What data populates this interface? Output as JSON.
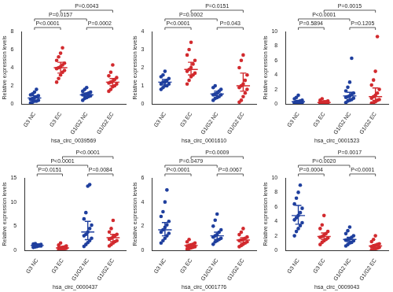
{
  "chart_data": [
    {
      "type": "scatter",
      "x_label": "hsa_circ_0039569",
      "y_label": "Relative expression levels",
      "categories": [
        "G3 NC",
        "G3 EC",
        "G1/G2 NC",
        "G1/G2 EC"
      ],
      "colors": [
        "#1f3f9e",
        "#d22a2e",
        "#1f3f9e",
        "#d22a2e"
      ],
      "ylim": [
        0,
        8
      ],
      "yticks": [
        0,
        2,
        4,
        6,
        8
      ],
      "grid": false,
      "groups": [
        {
          "values": [
            0.1,
            0.2,
            0.3,
            0.3,
            0.4,
            0.5,
            0.6,
            0.7,
            0.8,
            0.9,
            1.0,
            1.1,
            1.3,
            1.6
          ],
          "mean": 0.65,
          "error": [
            0.4,
            0.9
          ]
        },
        {
          "values": [
            2.4,
            2.8,
            3.2,
            3.5,
            3.7,
            3.9,
            4.0,
            4.1,
            4.3,
            4.5,
            4.8,
            5.2,
            5.6,
            6.2
          ],
          "mean": 4.0,
          "error": [
            3.4,
            4.6
          ]
        },
        {
          "values": [
            0.4,
            0.6,
            0.7,
            0.8,
            0.9,
            1.0,
            1.0,
            1.1,
            1.2,
            1.3,
            1.4,
            1.6,
            1.8
          ],
          "mean": 1.0,
          "error": [
            0.8,
            1.2
          ]
        },
        {
          "values": [
            1.4,
            1.6,
            1.9,
            2.0,
            2.2,
            2.3,
            2.4,
            2.5,
            2.7,
            2.9,
            3.1,
            3.5,
            4.3
          ],
          "mean": 2.4,
          "error": [
            2.0,
            2.8
          ]
        }
      ],
      "brackets": [
        {
          "from": "G3 NC",
          "to": "G3 EC",
          "label": "P<0.0001"
        },
        {
          "from": "G1/G2 NC",
          "to": "G1/G2 EC",
          "label": "P=0.0002"
        },
        {
          "from": "G3 NC",
          "to": "G1/G2 NC",
          "label": "P=0.0157"
        },
        {
          "from": "G3 EC",
          "to": "G1/G2 EC",
          "label": "P=0.0043"
        }
      ]
    },
    {
      "type": "scatter",
      "x_label": "hsa_circ_0001610",
      "y_label": "Relative expression levels",
      "categories": [
        "G3 NC",
        "G3 EC",
        "G1/G2 NC",
        "G1/G2 EC"
      ],
      "colors": [
        "#1f3f9e",
        "#d22a2e",
        "#1f3f9e",
        "#d22a2e"
      ],
      "ylim": [
        0,
        4
      ],
      "yticks": [
        0,
        1,
        2,
        3,
        4
      ],
      "grid": false,
      "groups": [
        {
          "values": [
            0.8,
            0.9,
            1.0,
            1.0,
            1.1,
            1.1,
            1.2,
            1.2,
            1.3,
            1.4,
            1.5,
            1.6,
            1.8
          ],
          "mean": 1.2,
          "error": [
            1.05,
            1.35
          ]
        },
        {
          "values": [
            1.1,
            1.3,
            1.5,
            1.6,
            1.7,
            1.8,
            1.9,
            2.0,
            2.2,
            2.4,
            2.7,
            3.0,
            3.4
          ],
          "mean": 1.9,
          "error": [
            1.6,
            2.3
          ]
        },
        {
          "values": [
            0.2,
            0.3,
            0.35,
            0.4,
            0.5,
            0.5,
            0.55,
            0.6,
            0.7,
            0.8,
            0.9,
            1.0
          ],
          "mean": 0.55,
          "error": [
            0.45,
            0.7
          ]
        },
        {
          "values": [
            0.1,
            0.2,
            0.4,
            0.6,
            0.8,
            0.9,
            1.0,
            1.1,
            1.3,
            1.6,
            2.0,
            2.4,
            2.7
          ],
          "mean": 1.0,
          "error": [
            0.7,
            1.7
          ]
        }
      ],
      "brackets": [
        {
          "from": "G3 NC",
          "to": "G3 EC",
          "label": "P<0.0001"
        },
        {
          "from": "G1/G2 NC",
          "to": "G1/G2 EC",
          "label": "P=0.043"
        },
        {
          "from": "G3 NC",
          "to": "G1/G2 NC",
          "label": "P=0.0002"
        },
        {
          "from": "G3 EC",
          "to": "G1/G2 EC",
          "label": "P=0.0151"
        }
      ]
    },
    {
      "type": "scatter",
      "x_label": "hsa_circ_0001523",
      "y_label": "Relative expression levels",
      "categories": [
        "G3 NC",
        "G3 EC",
        "G1/G2 NC",
        "G1/G2 EC"
      ],
      "colors": [
        "#1f3f9e",
        "#d22a2e",
        "#1f3f9e",
        "#d22a2e"
      ],
      "ylim": [
        0,
        10
      ],
      "yticks": [
        0,
        2,
        4,
        6,
        8,
        10
      ],
      "grid": false,
      "groups": [
        {
          "values": [
            0.0,
            0.05,
            0.1,
            0.1,
            0.2,
            0.2,
            0.3,
            0.3,
            0.4,
            0.5,
            0.7,
            0.9,
            1.2
          ],
          "mean": 0.3,
          "error": [
            0.1,
            0.5
          ]
        },
        {
          "values": [
            0.0,
            0.05,
            0.1,
            0.1,
            0.15,
            0.2,
            0.2,
            0.3,
            0.3,
            0.4,
            0.5,
            0.7
          ],
          "mean": 0.2,
          "error": [
            0.1,
            0.3
          ]
        },
        {
          "values": [
            0.2,
            0.4,
            0.5,
            0.6,
            0.8,
            0.9,
            1.0,
            1.1,
            1.3,
            1.5,
            1.8,
            2.3,
            3.0,
            6.3
          ],
          "mean": 1.1,
          "error": [
            0.6,
            1.6
          ]
        },
        {
          "values": [
            0.1,
            0.2,
            0.3,
            0.5,
            0.6,
            0.8,
            1.0,
            1.2,
            1.5,
            2.0,
            2.6,
            3.3,
            4.5,
            9.3
          ],
          "mean": 1.0,
          "error": [
            0.5,
            2.2
          ]
        }
      ],
      "brackets": [
        {
          "from": "G3 NC",
          "to": "G3 EC",
          "label": "P=0.5894"
        },
        {
          "from": "G1/G2 NC",
          "to": "G1/G2 EC",
          "label": "P=0.1205"
        },
        {
          "from": "G3 NC",
          "to": "G1/G2 NC",
          "label": "P<0.0001"
        },
        {
          "from": "G3 EC",
          "to": "G1/G2 EC",
          "label": "P=0.0015"
        }
      ]
    },
    {
      "type": "scatter",
      "x_label": "hsa_circ_0000437",
      "y_label": "Relative expression levels",
      "categories": [
        "G3 NC",
        "G3 EC",
        "G1/G2 NC",
        "G1/G2 EC"
      ],
      "colors": [
        "#1f3f9e",
        "#d22a2e",
        "#1f3f9e",
        "#d22a2e"
      ],
      "ylim": [
        0,
        15
      ],
      "yticks": [
        0,
        5,
        10,
        15
      ],
      "grid": false,
      "groups": [
        {
          "values": [
            0.6,
            0.7,
            0.8,
            0.9,
            0.9,
            1.0,
            1.0,
            1.1,
            1.1,
            1.2,
            1.3,
            1.4
          ],
          "mean": 1.0,
          "error": [
            0.9,
            1.1
          ]
        },
        {
          "values": [
            0.1,
            0.2,
            0.3,
            0.3,
            0.4,
            0.5,
            0.5,
            0.6,
            0.7,
            0.9,
            1.1,
            1.5
          ],
          "mean": 0.5,
          "error": [
            0.3,
            0.8
          ]
        },
        {
          "values": [
            0.8,
            1.2,
            1.6,
            2.0,
            2.5,
            3.0,
            3.3,
            3.8,
            4.5,
            5.2,
            6.5,
            7.8,
            13.3,
            13.6
          ],
          "mean": 3.8,
          "error": [
            2.2,
            6.0
          ]
        },
        {
          "values": [
            0.9,
            1.2,
            1.5,
            1.8,
            2.0,
            2.3,
            2.5,
            2.8,
            3.0,
            3.3,
            3.8,
            4.5,
            6.2
          ],
          "mean": 2.6,
          "error": [
            1.8,
            3.3
          ]
        }
      ],
      "brackets": [
        {
          "from": "G3 NC",
          "to": "G3 EC",
          "label": "P=0.0151"
        },
        {
          "from": "G1/G2 NC",
          "to": "G1/G2 EC",
          "label": "P=0.0084"
        },
        {
          "from": "G3 NC",
          "to": "G1/G2 NC",
          "label": "P<0.0001"
        },
        {
          "from": "G3 EC",
          "to": "G1/G2 EC",
          "label": "P<0.0001"
        }
      ]
    },
    {
      "type": "scatter",
      "x_label": "hsa_circ_0001776",
      "y_label": "Relative expression levels",
      "categories": [
        "G3 NC",
        "G3 EC",
        "G1/G2 NC",
        "G1/G2 EC"
      ],
      "colors": [
        "#1f3f9e",
        "#d22a2e",
        "#1f3f9e",
        "#d22a2e"
      ],
      "ylim": [
        0,
        6
      ],
      "yticks": [
        0,
        2,
        4,
        6
      ],
      "grid": false,
      "groups": [
        {
          "values": [
            0.6,
            0.8,
            1.0,
            1.2,
            1.4,
            1.5,
            1.7,
            1.9,
            2.1,
            2.4,
            2.8,
            3.2,
            4.0,
            5.0
          ],
          "mean": 1.7,
          "error": [
            1.2,
            2.3
          ]
        },
        {
          "values": [
            0.1,
            0.15,
            0.2,
            0.25,
            0.3,
            0.35,
            0.4,
            0.45,
            0.5,
            0.6,
            0.7,
            0.9
          ],
          "mean": 0.4,
          "error": [
            0.3,
            0.5
          ]
        },
        {
          "values": [
            0.5,
            0.7,
            0.8,
            0.9,
            1.0,
            1.1,
            1.2,
            1.3,
            1.5,
            1.7,
            2.0,
            2.5,
            3.0
          ],
          "mean": 1.2,
          "error": [
            0.9,
            1.5
          ]
        },
        {
          "values": [
            0.3,
            0.4,
            0.5,
            0.6,
            0.7,
            0.8,
            0.85,
            0.9,
            1.0,
            1.1,
            1.3,
            1.5,
            1.8
          ],
          "mean": 0.85,
          "error": [
            0.6,
            1.05
          ]
        }
      ],
      "brackets": [
        {
          "from": "G3 NC",
          "to": "G3 EC",
          "label": "P<0.0001"
        },
        {
          "from": "G1/G2 NC",
          "to": "G1/G2 EC",
          "label": "P=0.0067"
        },
        {
          "from": "G3 NC",
          "to": "G1/G2 NC",
          "label": "P=0.0479"
        },
        {
          "from": "G3 EC",
          "to": "G1/G2 EC",
          "label": "P=0.0009"
        }
      ]
    },
    {
      "type": "scatter",
      "x_label": "hsa_circ_0009043",
      "y_label": "Relative expression levels",
      "categories": [
        "G3 NC",
        "G3 EC",
        "G1/G2 NC",
        "G1/G2 EC"
      ],
      "colors": [
        "#1f3f9e",
        "#d22a2e",
        "#1f3f9e",
        "#d22a2e"
      ],
      "ylim": [
        0,
        10
      ],
      "yticks": [
        0,
        2,
        4,
        6,
        8,
        10
      ],
      "grid": false,
      "groups": [
        {
          "values": [
            2.0,
            2.6,
            3.0,
            3.4,
            3.8,
            4.2,
            4.5,
            4.8,
            5.2,
            5.8,
            6.4,
            7.2,
            8.0,
            9.0
          ],
          "mean": 4.8,
          "error": [
            3.6,
            6.2
          ]
        },
        {
          "values": [
            0.8,
            1.1,
            1.3,
            1.5,
            1.7,
            1.8,
            1.9,
            2.1,
            2.3,
            2.6,
            3.0,
            3.5,
            4.8
          ],
          "mean": 1.9,
          "error": [
            1.5,
            2.4
          ]
        },
        {
          "values": [
            0.6,
            0.8,
            1.0,
            1.1,
            1.3,
            1.4,
            1.5,
            1.6,
            1.8,
            2.0,
            2.3,
            2.7,
            3.2
          ],
          "mean": 1.5,
          "error": [
            1.2,
            1.8
          ]
        },
        {
          "values": [
            0.05,
            0.1,
            0.2,
            0.3,
            0.4,
            0.5,
            0.6,
            0.7,
            0.8,
            0.9,
            1.2,
            1.5,
            2.0
          ],
          "mean": 0.6,
          "error": [
            0.4,
            0.8
          ]
        }
      ],
      "brackets": [
        {
          "from": "G3 NC",
          "to": "G3 EC",
          "label": "P=0.0004"
        },
        {
          "from": "G1/G2 NC",
          "to": "G1/G2 EC",
          "label": "P<0.0001"
        },
        {
          "from": "G3 NC",
          "to": "G1/G2 NC",
          "label": "P=0.0020"
        },
        {
          "from": "G3 EC",
          "to": "G1/G2 EC",
          "label": "P=0.0017"
        }
      ]
    }
  ]
}
